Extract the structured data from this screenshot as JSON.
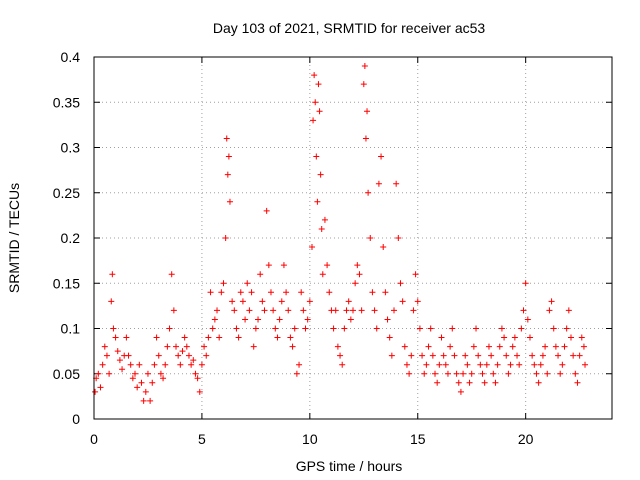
{
  "chart_data": {
    "type": "scatter",
    "title": "Day 103 of 2021, SRMTID for receiver ac53",
    "xlabel": "GPS time / hours",
    "ylabel": "SRMTID / TECUs",
    "xlim": [
      0,
      24
    ],
    "ylim": [
      0,
      0.4
    ],
    "x_ticks": [
      0,
      5,
      10,
      15,
      20
    ],
    "x_tick_labels": [
      "0",
      "5",
      "10",
      "15",
      "20"
    ],
    "y_ticks": [
      0,
      0.05,
      0.1,
      0.15,
      0.2,
      0.25,
      0.3,
      0.35,
      0.4
    ],
    "y_tick_labels": [
      "0",
      "0.05",
      "0.1",
      "0.15",
      "0.2",
      "0.25",
      "0.3",
      "0.35",
      "0.4"
    ],
    "grid": true,
    "marker": "+",
    "marker_color": "#ff0000",
    "series": [
      {
        "name": "SRMTID",
        "points": [
          [
            0.05,
            0.03
          ],
          [
            0.1,
            0.045
          ],
          [
            0.2,
            0.05
          ],
          [
            0.3,
            0.035
          ],
          [
            0.4,
            0.06
          ],
          [
            0.5,
            0.08
          ],
          [
            0.6,
            0.07
          ],
          [
            0.7,
            0.05
          ],
          [
            0.8,
            0.13
          ],
          [
            0.85,
            0.16
          ],
          [
            0.9,
            0.1
          ],
          [
            1.0,
            0.09
          ],
          [
            1.1,
            0.075
          ],
          [
            1.2,
            0.065
          ],
          [
            1.3,
            0.055
          ],
          [
            1.4,
            0.07
          ],
          [
            1.5,
            0.09
          ],
          [
            1.6,
            0.07
          ],
          [
            1.7,
            0.06
          ],
          [
            1.8,
            0.045
          ],
          [
            1.9,
            0.05
          ],
          [
            2.0,
            0.035
          ],
          [
            2.1,
            0.06
          ],
          [
            2.2,
            0.04
          ],
          [
            2.3,
            0.02
          ],
          [
            2.4,
            0.03
          ],
          [
            2.5,
            0.05
          ],
          [
            2.6,
            0.02
          ],
          [
            2.7,
            0.04
          ],
          [
            2.8,
            0.06
          ],
          [
            2.9,
            0.09
          ],
          [
            3.0,
            0.07
          ],
          [
            3.1,
            0.05
          ],
          [
            3.2,
            0.045
          ],
          [
            3.3,
            0.06
          ],
          [
            3.4,
            0.08
          ],
          [
            3.5,
            0.1
          ],
          [
            3.6,
            0.16
          ],
          [
            3.7,
            0.12
          ],
          [
            3.8,
            0.08
          ],
          [
            3.9,
            0.07
          ],
          [
            4.0,
            0.06
          ],
          [
            4.1,
            0.075
          ],
          [
            4.2,
            0.09
          ],
          [
            4.3,
            0.08
          ],
          [
            4.4,
            0.07
          ],
          [
            4.5,
            0.06
          ],
          [
            4.6,
            0.065
          ],
          [
            4.7,
            0.05
          ],
          [
            4.8,
            0.045
          ],
          [
            4.9,
            0.03
          ],
          [
            5.0,
            0.06
          ],
          [
            5.1,
            0.08
          ],
          [
            5.2,
            0.07
          ],
          [
            5.3,
            0.09
          ],
          [
            5.4,
            0.14
          ],
          [
            5.5,
            0.1
          ],
          [
            5.6,
            0.11
          ],
          [
            5.7,
            0.12
          ],
          [
            5.8,
            0.09
          ],
          [
            5.9,
            0.14
          ],
          [
            6.0,
            0.15
          ],
          [
            6.1,
            0.2
          ],
          [
            6.15,
            0.31
          ],
          [
            6.2,
            0.27
          ],
          [
            6.25,
            0.29
          ],
          [
            6.3,
            0.24
          ],
          [
            6.4,
            0.13
          ],
          [
            6.5,
            0.12
          ],
          [
            6.6,
            0.1
          ],
          [
            6.7,
            0.09
          ],
          [
            6.8,
            0.14
          ],
          [
            6.9,
            0.13
          ],
          [
            7.0,
            0.11
          ],
          [
            7.1,
            0.15
          ],
          [
            7.2,
            0.12
          ],
          [
            7.3,
            0.14
          ],
          [
            7.4,
            0.08
          ],
          [
            7.5,
            0.1
          ],
          [
            7.6,
            0.11
          ],
          [
            7.7,
            0.16
          ],
          [
            7.8,
            0.13
          ],
          [
            7.9,
            0.12
          ],
          [
            8.0,
            0.23
          ],
          [
            8.1,
            0.17
          ],
          [
            8.2,
            0.14
          ],
          [
            8.3,
            0.12
          ],
          [
            8.4,
            0.1
          ],
          [
            8.5,
            0.09
          ],
          [
            8.6,
            0.11
          ],
          [
            8.7,
            0.13
          ],
          [
            8.8,
            0.17
          ],
          [
            8.9,
            0.14
          ],
          [
            9.0,
            0.12
          ],
          [
            9.1,
            0.09
          ],
          [
            9.2,
            0.08
          ],
          [
            9.3,
            0.1
          ],
          [
            9.4,
            0.05
          ],
          [
            9.5,
            0.06
          ],
          [
            9.6,
            0.14
          ],
          [
            9.7,
            0.12
          ],
          [
            9.8,
            0.1
          ],
          [
            9.9,
            0.11
          ],
          [
            10.0,
            0.13
          ],
          [
            10.1,
            0.19
          ],
          [
            10.15,
            0.33
          ],
          [
            10.2,
            0.38
          ],
          [
            10.25,
            0.35
          ],
          [
            10.3,
            0.29
          ],
          [
            10.35,
            0.24
          ],
          [
            10.4,
            0.37
          ],
          [
            10.45,
            0.34
          ],
          [
            10.5,
            0.27
          ],
          [
            10.55,
            0.21
          ],
          [
            10.6,
            0.16
          ],
          [
            10.7,
            0.22
          ],
          [
            10.8,
            0.17
          ],
          [
            10.9,
            0.14
          ],
          [
            11.0,
            0.12
          ],
          [
            11.1,
            0.1
          ],
          [
            11.2,
            0.12
          ],
          [
            11.3,
            0.08
          ],
          [
            11.4,
            0.07
          ],
          [
            11.5,
            0.06
          ],
          [
            11.6,
            0.1
          ],
          [
            11.7,
            0.12
          ],
          [
            11.8,
            0.13
          ],
          [
            11.9,
            0.11
          ],
          [
            12.0,
            0.12
          ],
          [
            12.1,
            0.15
          ],
          [
            12.2,
            0.17
          ],
          [
            12.3,
            0.16
          ],
          [
            12.4,
            0.12
          ],
          [
            12.5,
            0.37
          ],
          [
            12.55,
            0.39
          ],
          [
            12.6,
            0.31
          ],
          [
            12.65,
            0.34
          ],
          [
            12.7,
            0.25
          ],
          [
            12.8,
            0.2
          ],
          [
            12.9,
            0.14
          ],
          [
            13.0,
            0.12
          ],
          [
            13.1,
            0.1
          ],
          [
            13.2,
            0.26
          ],
          [
            13.3,
            0.29
          ],
          [
            13.4,
            0.19
          ],
          [
            13.5,
            0.14
          ],
          [
            13.6,
            0.11
          ],
          [
            13.7,
            0.09
          ],
          [
            13.8,
            0.07
          ],
          [
            13.9,
            0.12
          ],
          [
            14.0,
            0.26
          ],
          [
            14.1,
            0.2
          ],
          [
            14.2,
            0.15
          ],
          [
            14.3,
            0.13
          ],
          [
            14.4,
            0.08
          ],
          [
            14.5,
            0.06
          ],
          [
            14.6,
            0.05
          ],
          [
            14.7,
            0.07
          ],
          [
            14.8,
            0.12
          ],
          [
            14.9,
            0.16
          ],
          [
            15.0,
            0.13
          ],
          [
            15.1,
            0.1
          ],
          [
            15.2,
            0.07
          ],
          [
            15.3,
            0.05
          ],
          [
            15.4,
            0.06
          ],
          [
            15.5,
            0.08
          ],
          [
            15.6,
            0.1
          ],
          [
            15.7,
            0.07
          ],
          [
            15.8,
            0.05
          ],
          [
            15.9,
            0.04
          ],
          [
            16.0,
            0.06
          ],
          [
            16.1,
            0.09
          ],
          [
            16.2,
            0.07
          ],
          [
            16.3,
            0.06
          ],
          [
            16.4,
            0.05
          ],
          [
            16.5,
            0.08
          ],
          [
            16.6,
            0.1
          ],
          [
            16.7,
            0.07
          ],
          [
            16.8,
            0.05
          ],
          [
            16.9,
            0.04
          ],
          [
            17.0,
            0.03
          ],
          [
            17.1,
            0.05
          ],
          [
            17.2,
            0.07
          ],
          [
            17.3,
            0.06
          ],
          [
            17.4,
            0.04
          ],
          [
            17.5,
            0.05
          ],
          [
            17.6,
            0.08
          ],
          [
            17.7,
            0.1
          ],
          [
            17.8,
            0.07
          ],
          [
            17.9,
            0.06
          ],
          [
            18.0,
            0.05
          ],
          [
            18.1,
            0.04
          ],
          [
            18.2,
            0.06
          ],
          [
            18.3,
            0.08
          ],
          [
            18.4,
            0.07
          ],
          [
            18.5,
            0.05
          ],
          [
            18.6,
            0.04
          ],
          [
            18.7,
            0.06
          ],
          [
            18.8,
            0.08
          ],
          [
            18.9,
            0.1
          ],
          [
            19.0,
            0.09
          ],
          [
            19.1,
            0.07
          ],
          [
            19.2,
            0.05
          ],
          [
            19.3,
            0.06
          ],
          [
            19.4,
            0.08
          ],
          [
            19.5,
            0.09
          ],
          [
            19.6,
            0.07
          ],
          [
            19.7,
            0.06
          ],
          [
            19.8,
            0.1
          ],
          [
            19.9,
            0.12
          ],
          [
            20.0,
            0.15
          ],
          [
            20.1,
            0.11
          ],
          [
            20.2,
            0.09
          ],
          [
            20.3,
            0.07
          ],
          [
            20.4,
            0.06
          ],
          [
            20.5,
            0.05
          ],
          [
            20.6,
            0.04
          ],
          [
            20.7,
            0.06
          ],
          [
            20.8,
            0.07
          ],
          [
            20.9,
            0.08
          ],
          [
            21.0,
            0.05
          ],
          [
            21.1,
            0.12
          ],
          [
            21.2,
            0.13
          ],
          [
            21.3,
            0.1
          ],
          [
            21.4,
            0.08
          ],
          [
            21.5,
            0.07
          ],
          [
            21.6,
            0.05
          ],
          [
            21.7,
            0.06
          ],
          [
            21.8,
            0.08
          ],
          [
            21.9,
            0.1
          ],
          [
            22.0,
            0.12
          ],
          [
            22.1,
            0.09
          ],
          [
            22.2,
            0.07
          ],
          [
            22.3,
            0.05
          ],
          [
            22.4,
            0.04
          ],
          [
            22.5,
            0.07
          ],
          [
            22.6,
            0.09
          ],
          [
            22.7,
            0.08
          ],
          [
            22.75,
            0.06
          ]
        ]
      }
    ]
  }
}
